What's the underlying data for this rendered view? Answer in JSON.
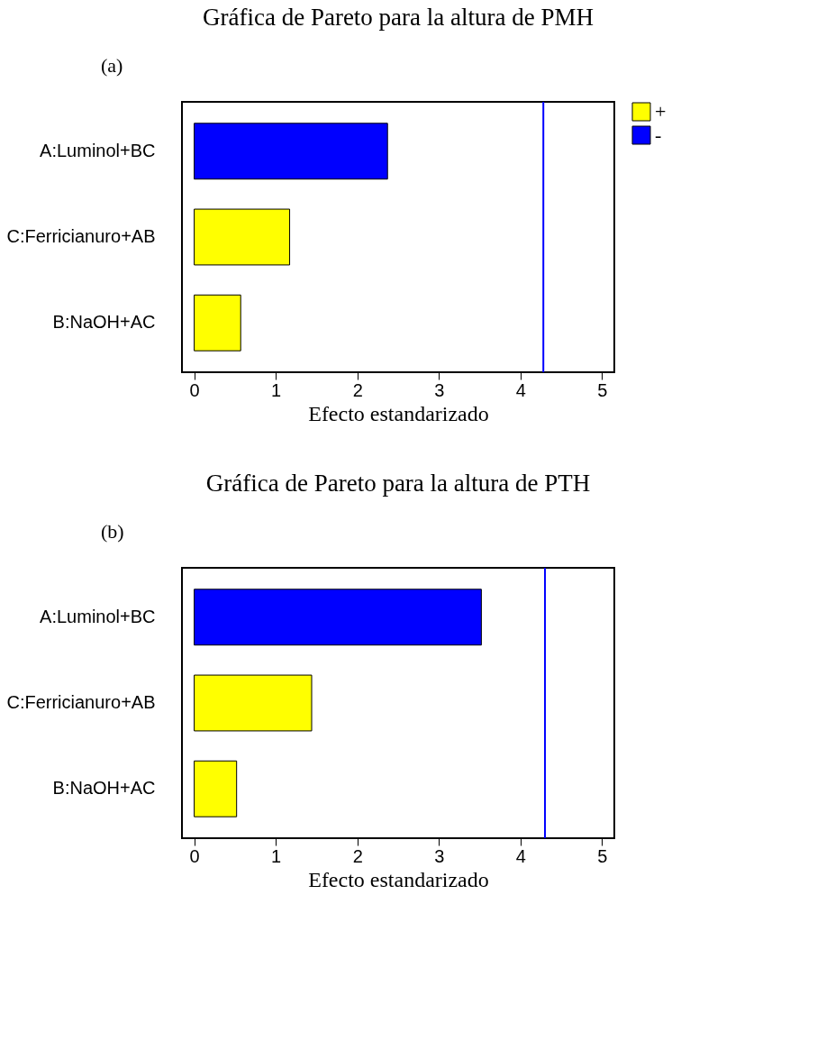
{
  "chart_data": [
    {
      "type": "bar",
      "orientation": "horizontal",
      "title": "Gráfica de Pareto para la altura de PMH",
      "xlabel": "Efecto estandarizado",
      "categories": [
        "A:Luminol+BC",
        "C:Ferricianuro+AB",
        "B:NaOH+AC"
      ],
      "series": [
        {
          "name": "+",
          "color": "#ffff00",
          "values": [
            null,
            1.17,
            0.57
          ]
        },
        {
          "name": "-",
          "color": "#0000ff",
          "values": [
            2.37,
            null,
            null
          ]
        }
      ],
      "xlim": [
        -0.15,
        5.15
      ],
      "xticks": [
        0,
        1,
        2,
        3,
        4,
        5
      ],
      "ref_lines": [
        {
          "axis": "x",
          "value": 4.28,
          "color": "#0000ff"
        }
      ],
      "annotations": [
        "(a)"
      ],
      "legend": "top right",
      "grid": false
    },
    {
      "type": "bar",
      "orientation": "horizontal",
      "title": "Gráfica de Pareto para la altura de PTH",
      "xlabel": "Efecto estandarizado",
      "categories": [
        "A:Luminol+BC",
        "C:Ferricianuro+AB",
        "B:NaOH+AC"
      ],
      "series": [
        {
          "name": "+",
          "color": "#ffff00",
          "values": [
            null,
            1.44,
            0.52
          ]
        },
        {
          "name": "-",
          "color": "#0000ff",
          "values": [
            3.52,
            null,
            null
          ]
        }
      ],
      "xlim": [
        -0.15,
        5.15
      ],
      "xticks": [
        0,
        1,
        2,
        3,
        4,
        5
      ],
      "ref_lines": [
        {
          "axis": "x",
          "value": 4.3,
          "color": "#0000ff"
        }
      ],
      "annotations": [
        "(b)"
      ],
      "legend": "top right",
      "grid": false
    }
  ]
}
